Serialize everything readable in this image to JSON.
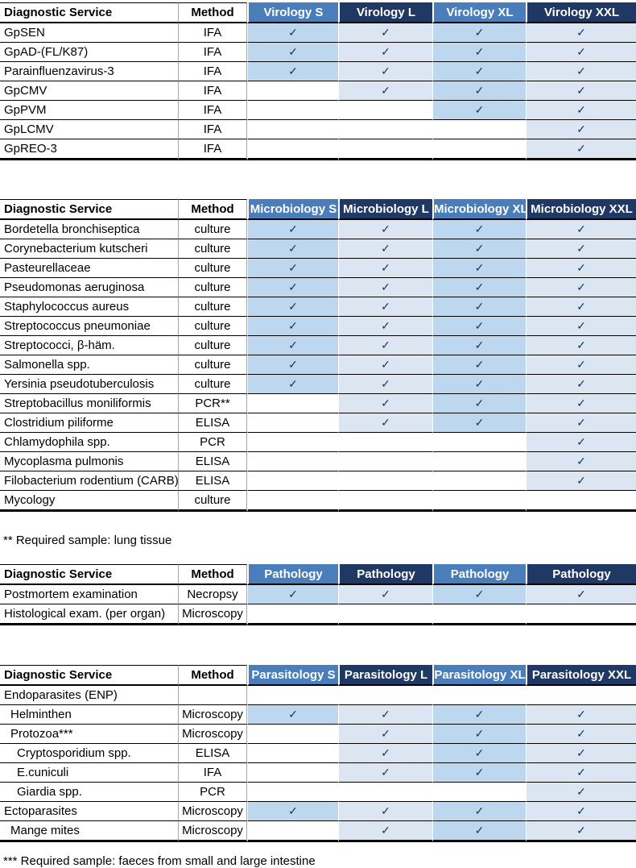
{
  "colors": {
    "header_medium_blue": "#4a7eba",
    "header_dark_navy": "#1f3864",
    "cell_light_blue": "#bdd7ee",
    "cell_lighter_blue": "#dce6f2",
    "check_mark": "#17365d",
    "row_border": "#000000",
    "column_divider": "#a6a6a6"
  },
  "check_glyph": "✓",
  "tables": [
    {
      "id": "virology",
      "headers": [
        "Diagnostic Service",
        "Method",
        "Virology S",
        "Virology L",
        "Virology XL",
        "Virology XXL"
      ],
      "rows": [
        {
          "service": "GpSEN",
          "method": "IFA",
          "indent": 0,
          "checks": [
            true,
            true,
            true,
            true
          ]
        },
        {
          "service": "GpAD-(FL/K87)",
          "method": "IFA",
          "indent": 0,
          "checks": [
            true,
            true,
            true,
            true
          ]
        },
        {
          "service": "Parainfluenzavirus-3",
          "method": "IFA",
          "indent": 0,
          "checks": [
            true,
            true,
            true,
            true
          ]
        },
        {
          "service": "GpCMV",
          "method": "IFA",
          "indent": 0,
          "checks": [
            false,
            true,
            true,
            true
          ]
        },
        {
          "service": "GpPVM",
          "method": "IFA",
          "indent": 0,
          "checks": [
            false,
            false,
            true,
            true
          ]
        },
        {
          "service": "GpLCMV",
          "method": "IFA",
          "indent": 0,
          "checks": [
            false,
            false,
            false,
            true
          ]
        },
        {
          "service": "GpREO-3",
          "method": "IFA",
          "indent": 0,
          "checks": [
            false,
            false,
            false,
            true
          ]
        }
      ]
    },
    {
      "id": "microbiology",
      "headers": [
        "Diagnostic Service",
        "Method",
        "Microbiology S",
        "Microbiology L",
        "Microbiology XL",
        "Microbiology XXL"
      ],
      "rows": [
        {
          "service": "Bordetella bronchiseptica",
          "method": "culture",
          "indent": 0,
          "checks": [
            true,
            true,
            true,
            true
          ]
        },
        {
          "service": "Corynebacterium kutscheri",
          "method": "culture",
          "indent": 0,
          "checks": [
            true,
            true,
            true,
            true
          ]
        },
        {
          "service": "Pasteurellaceae",
          "method": "culture",
          "indent": 0,
          "checks": [
            true,
            true,
            true,
            true
          ]
        },
        {
          "service": "Pseudomonas aeruginosa",
          "method": "culture",
          "indent": 0,
          "checks": [
            true,
            true,
            true,
            true
          ]
        },
        {
          "service": "Staphylococcus aureus",
          "method": "culture",
          "indent": 0,
          "checks": [
            true,
            true,
            true,
            true
          ]
        },
        {
          "service": "Streptococcus pneumoniae",
          "method": "culture",
          "indent": 0,
          "checks": [
            true,
            true,
            true,
            true
          ]
        },
        {
          "service": "Streptococci, β-häm.",
          "method": "culture",
          "indent": 0,
          "checks": [
            true,
            true,
            true,
            true
          ]
        },
        {
          "service": "Salmonella spp.",
          "method": "culture",
          "indent": 0,
          "checks": [
            true,
            true,
            true,
            true
          ]
        },
        {
          "service": "Yersinia pseudotuberculosis",
          "method": "culture",
          "indent": 0,
          "checks": [
            true,
            true,
            true,
            true
          ]
        },
        {
          "service": "Streptobacillus moniliformis",
          "method": "PCR**",
          "indent": 0,
          "checks": [
            false,
            true,
            true,
            true
          ]
        },
        {
          "service": "Clostridium piliforme",
          "method": "ELISA",
          "indent": 0,
          "checks": [
            false,
            true,
            true,
            true
          ]
        },
        {
          "service": "Chlamydophila spp.",
          "method": "PCR",
          "indent": 0,
          "checks": [
            false,
            false,
            false,
            true
          ]
        },
        {
          "service": "Mycoplasma pulmonis",
          "method": "ELISA",
          "indent": 0,
          "checks": [
            false,
            false,
            false,
            true
          ]
        },
        {
          "service": "Filobacterium rodentium (CARB)",
          "method": "ELISA",
          "indent": 0,
          "checks": [
            false,
            false,
            false,
            true
          ]
        },
        {
          "service": "Mycology",
          "method": "culture",
          "indent": 0,
          "checks": [
            false,
            false,
            false,
            false
          ]
        }
      ],
      "footnote": "** Required sample: lung tissue"
    },
    {
      "id": "pathology",
      "headers": [
        "Diagnostic Service",
        "Method",
        "Pathology",
        "Pathology",
        "Pathology",
        "Pathology"
      ],
      "rows": [
        {
          "service": "Postmortem examination",
          "method": "Necropsy",
          "indent": 0,
          "checks": [
            true,
            true,
            true,
            true
          ]
        },
        {
          "service": "Histological exam. (per organ)",
          "method": "Microscopy",
          "indent": 0,
          "checks": [
            false,
            false,
            false,
            false
          ]
        }
      ]
    },
    {
      "id": "parasitology",
      "headers": [
        "Diagnostic Service",
        "Method",
        "Parasitology S",
        "Parasitology L",
        "Parasitology XL",
        "Parasitology XXL"
      ],
      "rows": [
        {
          "service": "Endoparasites (ENP)",
          "method": "",
          "indent": 0,
          "checks": [
            false,
            false,
            false,
            false
          ]
        },
        {
          "service": "Helminthen",
          "method": "Microscopy",
          "indent": 1,
          "checks": [
            true,
            true,
            true,
            true
          ]
        },
        {
          "service": "Protozoa***",
          "method": "Microscopy",
          "indent": 1,
          "checks": [
            false,
            true,
            true,
            true
          ]
        },
        {
          "service": "Cryptosporidium spp.",
          "method": "ELISA",
          "indent": 2,
          "checks": [
            false,
            true,
            true,
            true
          ]
        },
        {
          "service": "E.cuniculi",
          "method": "IFA",
          "indent": 2,
          "checks": [
            false,
            true,
            true,
            true
          ]
        },
        {
          "service": "Giardia spp.",
          "method": "PCR",
          "indent": 2,
          "checks": [
            false,
            false,
            false,
            true
          ]
        },
        {
          "service": "Ectoparasites",
          "method": "Microscopy",
          "indent": 0,
          "checks": [
            true,
            true,
            true,
            true
          ]
        },
        {
          "service": "Mange mites",
          "method": "Microscopy",
          "indent": 1,
          "checks": [
            false,
            true,
            true,
            true
          ]
        }
      ],
      "footnote": "*** Required sample: faeces from small and large intestine"
    }
  ]
}
